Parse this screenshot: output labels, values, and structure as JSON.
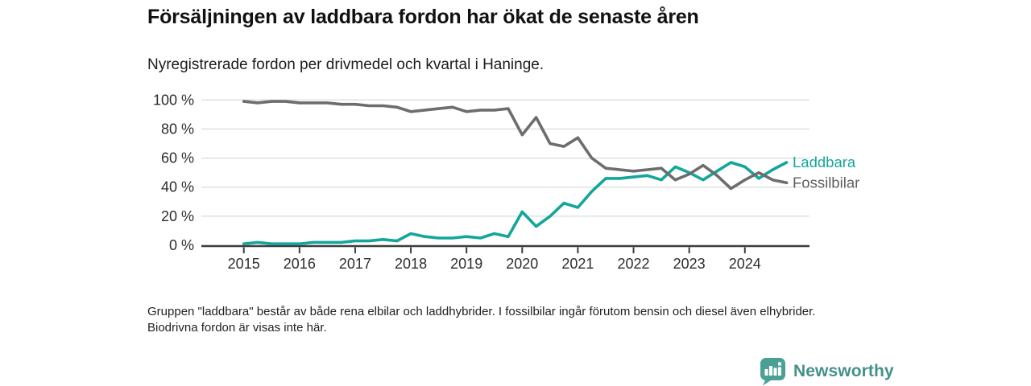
{
  "header": {
    "title": "Försäljningen av laddbara fordon har ökat de senaste åren",
    "subtitle": "Nyregistrerade fordon per drivmedel och kvartal i Haninge."
  },
  "footnote": {
    "text": "Gruppen \"laddbara\" består av både rena elbilar och laddhybrider. I fossilbilar ingår förutom bensin och diesel även elhybrider. Biodrivna fordon är visas inte här."
  },
  "logo": {
    "name": "Newsworthy",
    "icon": "speech-bubble-bar-chart",
    "color_icon": "#4ba095",
    "color_text": "#44918a"
  },
  "chart_data": {
    "type": "line",
    "title": "Försäljningen av laddbara fordon har ökat de senaste åren",
    "subtitle": "Nyregistrerade fordon per drivmedel och kvartal i Haninge.",
    "x_unit": "quarter",
    "categories": [
      "2015",
      "2016",
      "2017",
      "2018",
      "2019",
      "2020",
      "2021",
      "2022",
      "2023",
      "2024"
    ],
    "x": [
      "2015 Q1",
      "2015 Q2",
      "2015 Q3",
      "2015 Q4",
      "2016 Q1",
      "2016 Q2",
      "2016 Q3",
      "2016 Q4",
      "2017 Q1",
      "2017 Q2",
      "2017 Q3",
      "2017 Q4",
      "2018 Q1",
      "2018 Q2",
      "2018 Q3",
      "2018 Q4",
      "2019 Q1",
      "2019 Q2",
      "2019 Q3",
      "2019 Q4",
      "2020 Q1",
      "2020 Q2",
      "2020 Q3",
      "2020 Q4",
      "2021 Q1",
      "2021 Q2",
      "2021 Q3",
      "2021 Q4",
      "2022 Q1",
      "2022 Q2",
      "2022 Q3",
      "2022 Q4",
      "2023 Q1",
      "2023 Q2",
      "2023 Q3",
      "2023 Q4",
      "2024 Q1",
      "2024 Q2",
      "2024 Q3",
      "2024 Q4"
    ],
    "series": [
      {
        "name": "Laddbara",
        "color": "#14a69a",
        "values": [
          1,
          2,
          1,
          1,
          1,
          2,
          2,
          2,
          3,
          3,
          4,
          3,
          8,
          6,
          5,
          5,
          6,
          5,
          8,
          6,
          23,
          13,
          20,
          29,
          26,
          37,
          46,
          46,
          47,
          48,
          45,
          54,
          50,
          45,
          51,
          57,
          54,
          46,
          52,
          57
        ]
      },
      {
        "name": "Fossilbilar",
        "color": "#6d6d6d",
        "values": [
          99,
          98,
          99,
          99,
          98,
          98,
          98,
          97,
          97,
          96,
          96,
          95,
          92,
          93,
          94,
          95,
          92,
          93,
          93,
          94,
          76,
          88,
          70,
          68,
          74,
          60,
          53,
          52,
          51,
          52,
          53,
          45,
          49,
          55,
          48,
          39,
          45,
          50,
          45,
          43
        ]
      }
    ],
    "ylim": [
      0,
      100
    ],
    "y_ticks": [
      0,
      20,
      40,
      60,
      80,
      100
    ],
    "y_tick_suffix": " %",
    "grid": true,
    "legend": "line-end-labels",
    "label_colors": {
      "Laddbara": "#14a69a",
      "Fossilbilar": "#5f5f5f"
    }
  }
}
